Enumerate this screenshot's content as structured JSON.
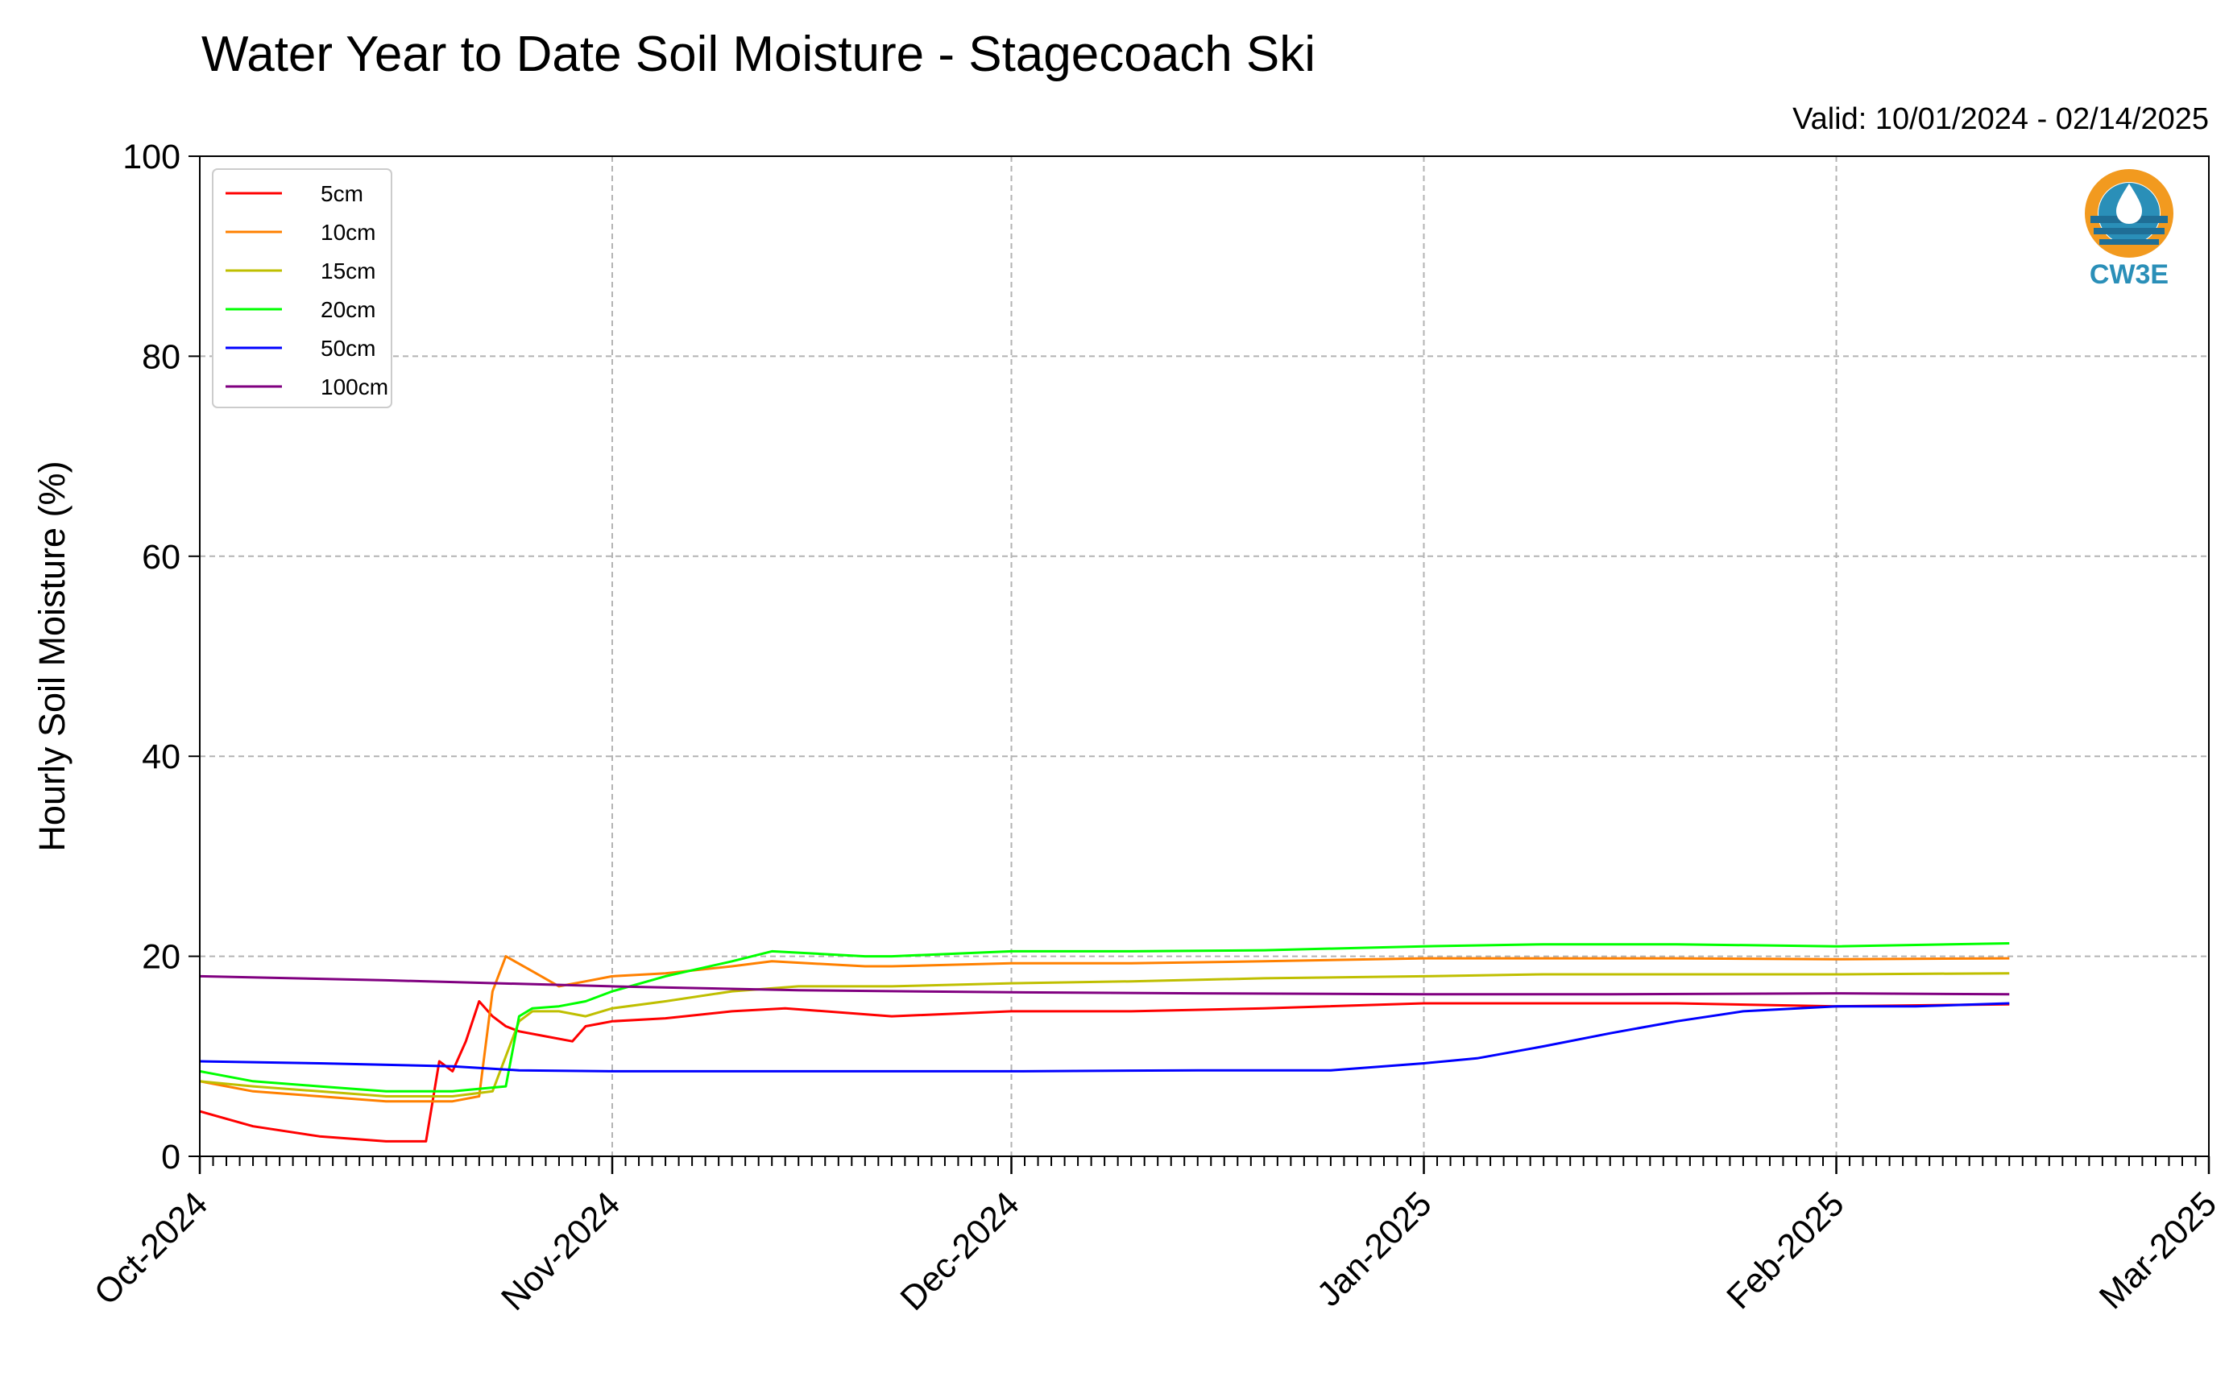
{
  "chart_data": {
    "type": "line",
    "title": "Water Year to Date Soil Moisture - Stagecoach Ski",
    "subtitle": "Valid: 10/01/2024 - 02/14/2025",
    "xlabel": "",
    "ylabel": "Hourly Soil Moisture (%)",
    "ylim": [
      0,
      100
    ],
    "yticks": [
      0,
      20,
      40,
      60,
      80,
      100
    ],
    "xlim": [
      "2024-10-01",
      "2025-03-01"
    ],
    "xticks": [
      {
        "date": "2024-10-01",
        "label": "Oct-2024"
      },
      {
        "date": "2024-11-01",
        "label": "Nov-2024"
      },
      {
        "date": "2024-12-01",
        "label": "Dec-2024"
      },
      {
        "date": "2025-01-01",
        "label": "Jan-2025"
      },
      {
        "date": "2025-02-01",
        "label": "Feb-2025"
      },
      {
        "date": "2025-03-01",
        "label": "Mar-2025"
      }
    ],
    "grid": true,
    "legend_position": "top-left",
    "series": [
      {
        "name": "5cm",
        "color": "#ff0000",
        "x": [
          "2024-10-01",
          "2024-10-05",
          "2024-10-10",
          "2024-10-15",
          "2024-10-18",
          "2024-10-19",
          "2024-10-20",
          "2024-10-21",
          "2024-10-22",
          "2024-10-23",
          "2024-10-24",
          "2024-10-25",
          "2024-10-27",
          "2024-10-29",
          "2024-10-30",
          "2024-11-01",
          "2024-11-05",
          "2024-11-10",
          "2024-11-14",
          "2024-11-20",
          "2024-11-22",
          "2024-12-01",
          "2024-12-10",
          "2024-12-20",
          "2025-01-01",
          "2025-01-10",
          "2025-01-20",
          "2025-02-01",
          "2025-02-14"
        ],
        "y": [
          4.5,
          3.0,
          2.0,
          1.5,
          1.5,
          9.5,
          8.5,
          11.5,
          15.5,
          14.0,
          13.0,
          12.5,
          12.0,
          11.5,
          13.0,
          13.5,
          13.8,
          14.5,
          14.8,
          14.2,
          14.0,
          14.5,
          14.5,
          14.8,
          15.3,
          15.3,
          15.3,
          15.0,
          15.2
        ]
      },
      {
        "name": "10cm",
        "color": "#ff8000",
        "x": [
          "2024-10-01",
          "2024-10-05",
          "2024-10-10",
          "2024-10-15",
          "2024-10-20",
          "2024-10-22",
          "2024-10-23",
          "2024-10-24",
          "2024-10-26",
          "2024-10-28",
          "2024-10-30",
          "2024-11-01",
          "2024-11-05",
          "2024-11-10",
          "2024-11-13",
          "2024-11-20",
          "2024-11-22",
          "2024-12-01",
          "2024-12-10",
          "2024-12-20",
          "2025-01-01",
          "2025-01-10",
          "2025-01-20",
          "2025-02-01",
          "2025-02-14"
        ],
        "y": [
          7.5,
          6.5,
          6.0,
          5.5,
          5.5,
          6.0,
          16.5,
          20.0,
          18.5,
          17.0,
          17.5,
          18.0,
          18.3,
          19.0,
          19.5,
          19.0,
          19.0,
          19.3,
          19.3,
          19.5,
          19.8,
          19.8,
          19.8,
          19.7,
          19.8
        ]
      },
      {
        "name": "15cm",
        "color": "#bfbf00",
        "x": [
          "2024-10-01",
          "2024-10-05",
          "2024-10-10",
          "2024-10-15",
          "2024-10-20",
          "2024-10-23",
          "2024-10-24",
          "2024-10-25",
          "2024-10-26",
          "2024-10-28",
          "2024-10-30",
          "2024-11-01",
          "2024-11-05",
          "2024-11-10",
          "2024-11-15",
          "2024-11-22",
          "2024-12-01",
          "2024-12-10",
          "2024-12-20",
          "2025-01-01",
          "2025-01-10",
          "2025-01-20",
          "2025-02-01",
          "2025-02-14"
        ],
        "y": [
          7.5,
          7.0,
          6.5,
          6.0,
          6.0,
          6.5,
          10.0,
          13.5,
          14.5,
          14.5,
          14.0,
          14.8,
          15.5,
          16.5,
          17.0,
          17.0,
          17.3,
          17.5,
          17.8,
          18.0,
          18.2,
          18.2,
          18.2,
          18.3
        ]
      },
      {
        "name": "20cm",
        "color": "#00ff00",
        "x": [
          "2024-10-01",
          "2024-10-05",
          "2024-10-10",
          "2024-10-15",
          "2024-10-20",
          "2024-10-24",
          "2024-10-25",
          "2024-10-26",
          "2024-10-28",
          "2024-10-30",
          "2024-11-01",
          "2024-11-05",
          "2024-11-10",
          "2024-11-13",
          "2024-11-20",
          "2024-11-22",
          "2024-12-01",
          "2024-12-10",
          "2024-12-20",
          "2025-01-01",
          "2025-01-10",
          "2025-01-20",
          "2025-02-01",
          "2025-02-14"
        ],
        "y": [
          8.5,
          7.5,
          7.0,
          6.5,
          6.5,
          7.0,
          14.0,
          14.8,
          15.0,
          15.5,
          16.5,
          18.0,
          19.5,
          20.5,
          20.0,
          20.0,
          20.5,
          20.5,
          20.6,
          21.0,
          21.2,
          21.2,
          21.0,
          21.3
        ]
      },
      {
        "name": "50cm",
        "color": "#0000ff",
        "x": [
          "2024-10-01",
          "2024-10-10",
          "2024-10-20",
          "2024-10-25",
          "2024-11-01",
          "2024-11-15",
          "2024-12-01",
          "2024-12-15",
          "2024-12-25",
          "2025-01-01",
          "2025-01-05",
          "2025-01-10",
          "2025-01-15",
          "2025-01-20",
          "2025-01-25",
          "2025-02-01",
          "2025-02-07",
          "2025-02-14"
        ],
        "y": [
          9.5,
          9.3,
          9.0,
          8.6,
          8.5,
          8.5,
          8.5,
          8.6,
          8.6,
          9.3,
          9.8,
          11.0,
          12.3,
          13.5,
          14.5,
          15.0,
          15.0,
          15.3
        ]
      },
      {
        "name": "100cm",
        "color": "#800080",
        "x": [
          "2024-10-01",
          "2024-10-15",
          "2024-11-01",
          "2024-11-15",
          "2024-12-01",
          "2024-12-15",
          "2025-01-01",
          "2025-01-15",
          "2025-02-01",
          "2025-02-14"
        ],
        "y": [
          18.0,
          17.6,
          17.0,
          16.6,
          16.4,
          16.3,
          16.2,
          16.2,
          16.3,
          16.2
        ]
      }
    ]
  },
  "logo": {
    "text": "CW3E",
    "colors": {
      "ring": "#f29a1f",
      "blue": "#2a8fb8",
      "dark": "#1f6e96"
    }
  }
}
